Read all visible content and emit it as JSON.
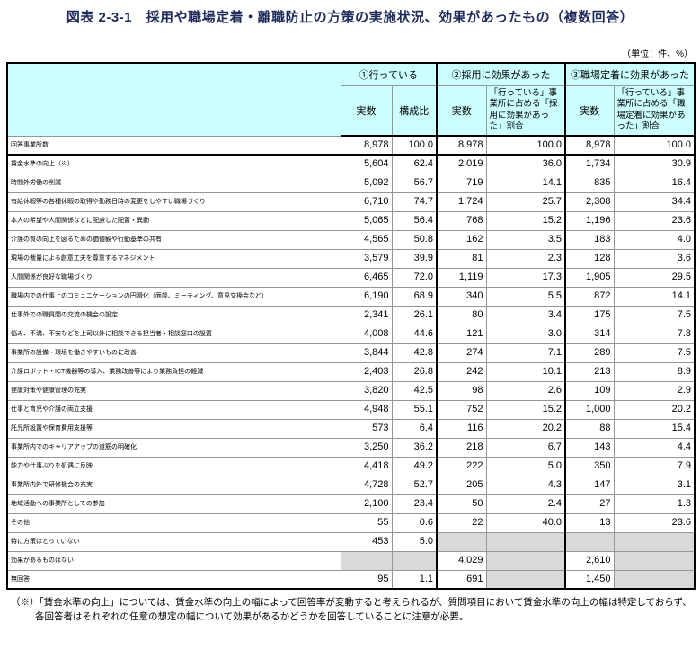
{
  "title": "図表 2-3-1　採用や職場定着・離職防止の方策の実施状況、効果があったもの（複数回答）",
  "unit_note": "（単位：件、%）",
  "colors": {
    "header_bg": "#ccffff",
    "empty_cell_gray": "#d9d9d9",
    "title_color": "#1f2b5b",
    "border_black": "#000000",
    "border_gray": "#969696"
  },
  "table": {
    "groups": [
      {
        "label": "①行っている",
        "subcols": [
          "実数",
          "構成比"
        ]
      },
      {
        "label": "②採用に効果があった",
        "subcols": [
          "実数",
          "「行っている」事業所に占める「採用に効果があった」割合"
        ]
      },
      {
        "label": "③職場定着に効果があった",
        "subcols": [
          "実数",
          "「行っている」事業所に占める「職場定着に効果があった」割合"
        ]
      }
    ],
    "rows": [
      {
        "label": "回答事業所数",
        "values": [
          "8,978",
          "100.0",
          "8,978",
          "100.0",
          "8,978",
          "100.0"
        ]
      },
      {
        "label": "賃金水準の向上（※）",
        "values": [
          "5,604",
          "62.4",
          "2,019",
          "36.0",
          "1,734",
          "30.9"
        ]
      },
      {
        "label": "時間外労働の削減",
        "values": [
          "5,092",
          "56.7",
          "719",
          "14.1",
          "835",
          "16.4"
        ]
      },
      {
        "label": "有給休暇等の各種休暇の取得や勤務日時の変更をしやすい職場づくり",
        "values": [
          "6,710",
          "74.7",
          "1,724",
          "25.7",
          "2,308",
          "34.4"
        ]
      },
      {
        "label": "本人の希望や人間関係などに配慮した配置・異動",
        "values": [
          "5,065",
          "56.4",
          "768",
          "15.2",
          "1,196",
          "23.6"
        ]
      },
      {
        "label": "介護の質の向上を図るための価値観や行動基準の共有",
        "values": [
          "4,565",
          "50.8",
          "162",
          "3.5",
          "183",
          "4.0"
        ]
      },
      {
        "label": "現場の裁量による創意工夫を尊重するマネジメント",
        "values": [
          "3,579",
          "39.9",
          "81",
          "2.3",
          "128",
          "3.6"
        ]
      },
      {
        "label": "人間関係が良好な職場づくり",
        "values": [
          "6,465",
          "72.0",
          "1,119",
          "17.3",
          "1,905",
          "29.5"
        ]
      },
      {
        "label": "職場内での仕事上のコミュニケーションの円滑化（面談、ミーティング、意見交換会など）",
        "values": [
          "6,190",
          "68.9",
          "340",
          "5.5",
          "872",
          "14.1"
        ]
      },
      {
        "label": "仕事外での職員間の交流の機会の設定",
        "values": [
          "2,341",
          "26.1",
          "80",
          "3.4",
          "175",
          "7.5"
        ]
      },
      {
        "label": "悩み、不満、不安などを上司以外に相談できる担当者・相談窓口の設置",
        "values": [
          "4,008",
          "44.6",
          "121",
          "3.0",
          "314",
          "7.8"
        ]
      },
      {
        "label": "事業所の設備・環境を働きやすいものに改善",
        "values": [
          "3,844",
          "42.8",
          "274",
          "7.1",
          "289",
          "7.5"
        ]
      },
      {
        "label": "介護ロボット・ICT機器等の導入、業務改善等により業務負担の軽減",
        "values": [
          "2,403",
          "26.8",
          "242",
          "10.1",
          "213",
          "8.9"
        ]
      },
      {
        "label": "健康対策や健康管理の充実",
        "values": [
          "3,820",
          "42.5",
          "98",
          "2.6",
          "109",
          "2.9"
        ]
      },
      {
        "label": "仕事と育児や介護の両立支援",
        "values": [
          "4,948",
          "55.1",
          "752",
          "15.2",
          "1,000",
          "20.2"
        ]
      },
      {
        "label": "託児所設置や保育費用支援等",
        "values": [
          "573",
          "6.4",
          "116",
          "20.2",
          "88",
          "15.4"
        ]
      },
      {
        "label": "事業所内でのキャリアアップの道筋の明確化",
        "values": [
          "3,250",
          "36.2",
          "218",
          "6.7",
          "143",
          "4.4"
        ]
      },
      {
        "label": "能力や仕事ぶりを処遇に反映",
        "values": [
          "4,418",
          "49.2",
          "222",
          "5.0",
          "350",
          "7.9"
        ]
      },
      {
        "label": "事業所内外で研修機会の充実",
        "values": [
          "4,728",
          "52.7",
          "205",
          "4.3",
          "147",
          "3.1"
        ]
      },
      {
        "label": "地域活動への事業所としての参加",
        "values": [
          "2,100",
          "23.4",
          "50",
          "2.4",
          "27",
          "1.3"
        ]
      },
      {
        "label": "その他",
        "values": [
          "55",
          "0.6",
          "22",
          "40.0",
          "13",
          "23.6"
        ]
      },
      {
        "label": "特に方策はとっていない",
        "values": [
          "453",
          "5.0",
          null,
          null,
          null,
          null
        ]
      },
      {
        "label": "効果があるものはない",
        "values": [
          null,
          null,
          "4,029",
          null,
          "2,610",
          null
        ]
      },
      {
        "label": "無回答",
        "values": [
          "95",
          "1.1",
          "691",
          null,
          "1,450",
          null
        ]
      }
    ]
  },
  "footnote": "（※）「賃金水準の向上」については、賃金水準の向上の幅によって回答率が変動すると考えられるが、質問項目において賃金水準の向上の幅は特定しておらず、各回答者はそれぞれの任意の想定の幅について効果があるかどうかを回答していることに注意が必要。"
}
